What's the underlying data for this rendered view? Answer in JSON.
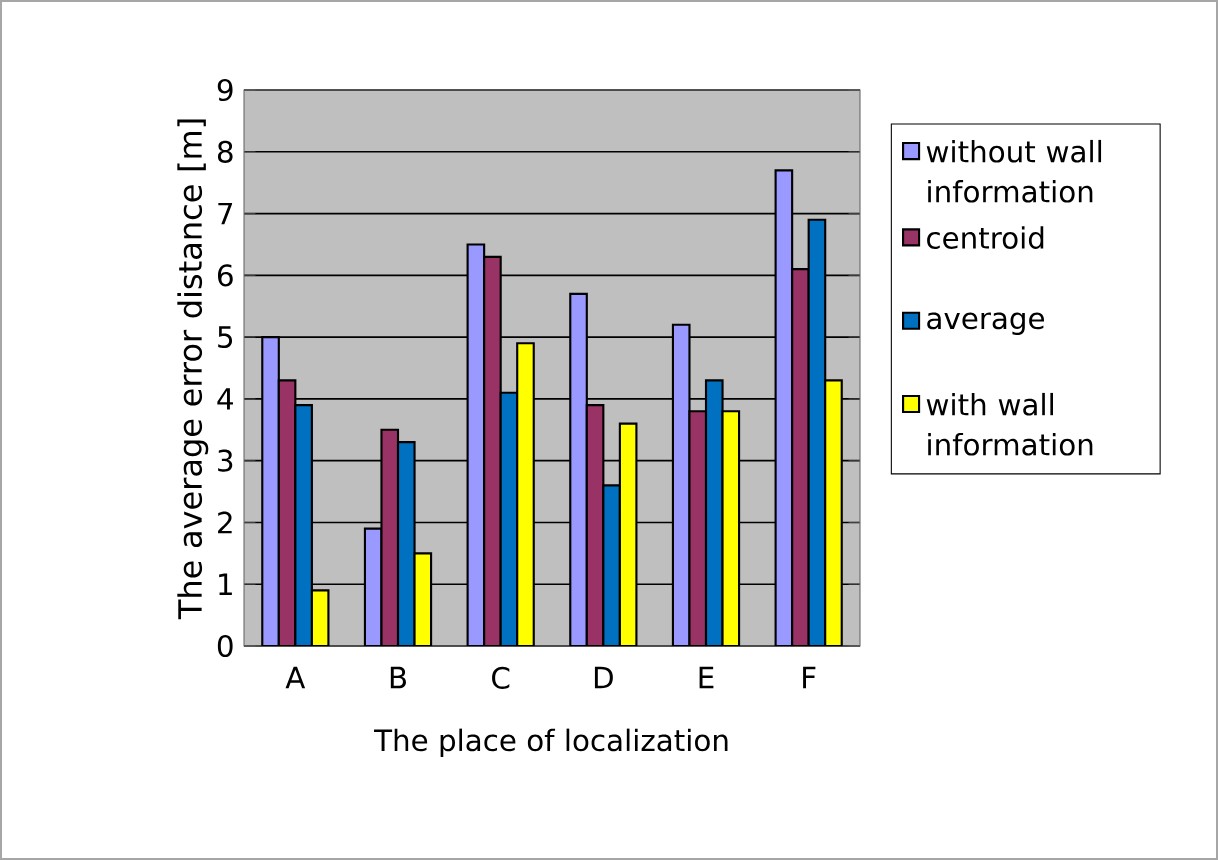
{
  "chart_data": {
    "type": "bar",
    "xlabel": "The place of localization",
    "ylabel": "The average error distance [m]",
    "categories": [
      "A",
      "B",
      "C",
      "D",
      "E",
      "F"
    ],
    "series": [
      {
        "name": "without wall information",
        "color": "#9999ff",
        "values": [
          5.0,
          1.9,
          6.5,
          5.7,
          5.2,
          7.7
        ]
      },
      {
        "name": "centroid",
        "color": "#993366",
        "values": [
          4.3,
          3.5,
          6.3,
          3.9,
          3.8,
          6.1
        ]
      },
      {
        "name": "average",
        "color": "#0070c0",
        "values": [
          3.9,
          3.3,
          4.1,
          2.6,
          4.3,
          6.9
        ]
      },
      {
        "name": "with wall information",
        "color": "#ffff00",
        "values": [
          0.9,
          1.5,
          4.9,
          3.6,
          3.8,
          4.3
        ]
      }
    ],
    "ylim": [
      0,
      9
    ],
    "yticks": [
      0,
      1,
      2,
      3,
      4,
      5,
      6,
      7,
      8,
      9
    ],
    "grid": "y",
    "legend": "right"
  }
}
